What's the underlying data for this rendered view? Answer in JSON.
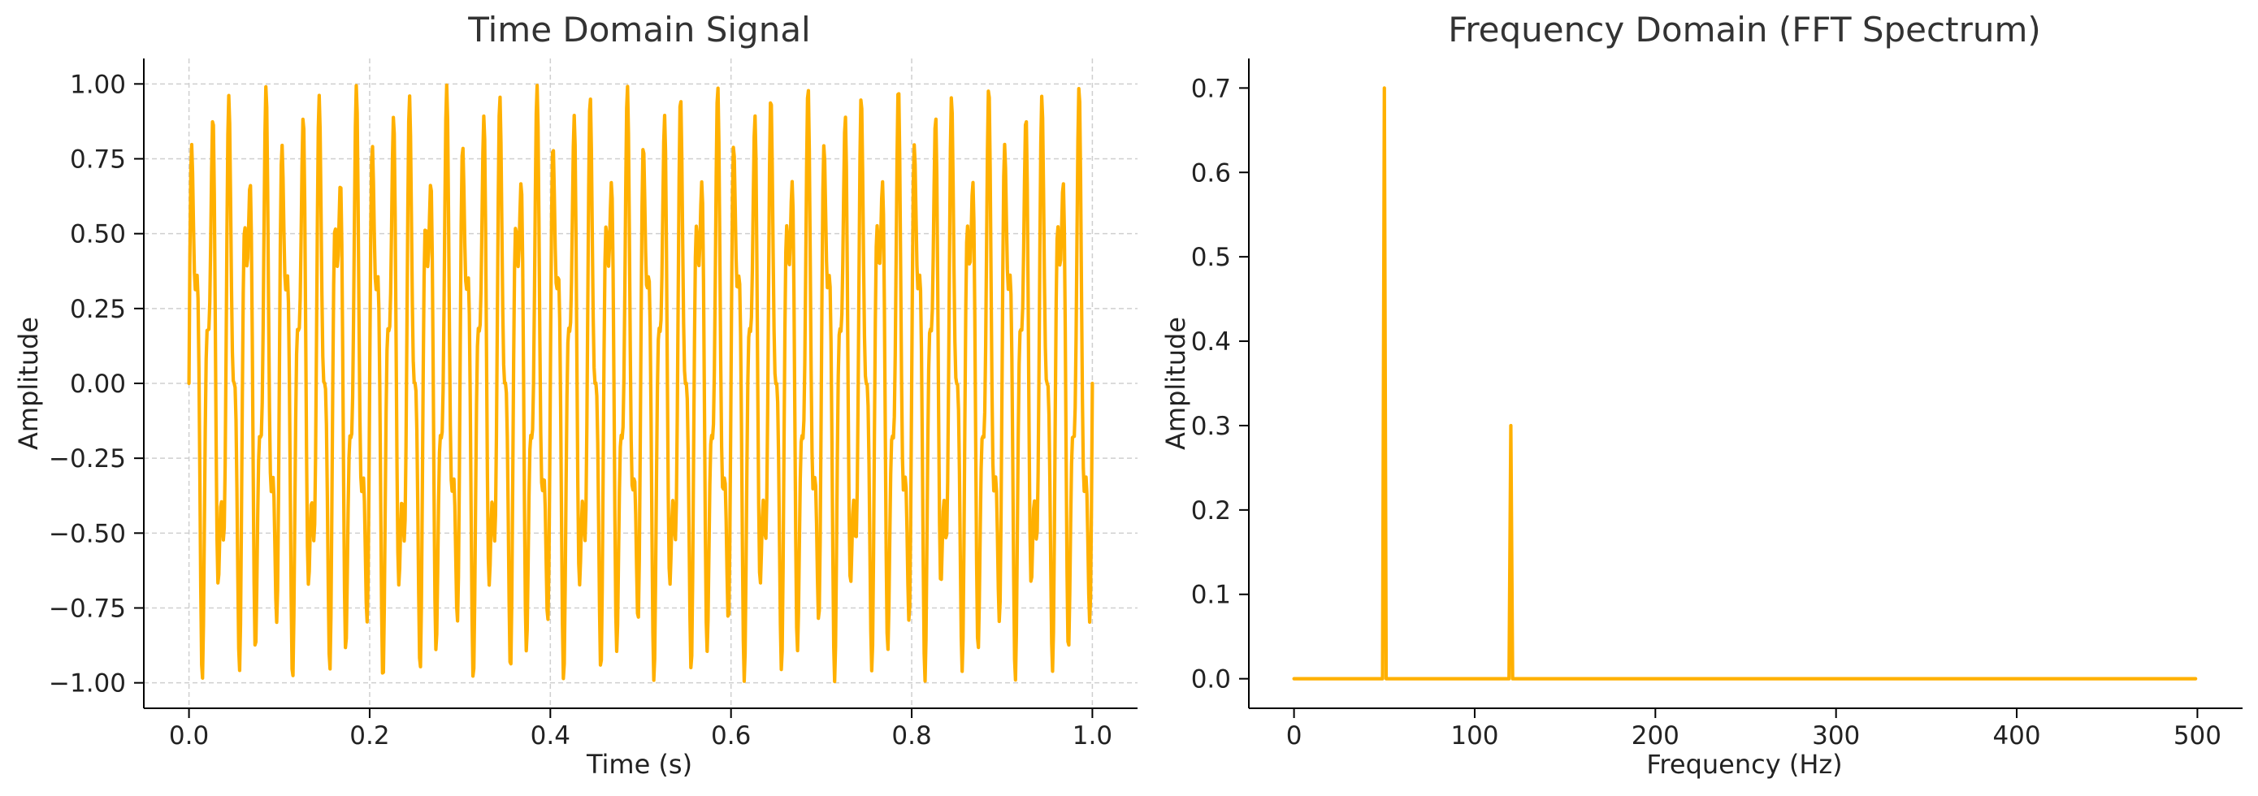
{
  "colors": {
    "series": "#FFB000",
    "grid": "#cfcfcf",
    "axis": "#000000",
    "text": "#222222",
    "title": "#333333"
  },
  "chart_data": [
    {
      "type": "line",
      "title": "Time Domain Signal",
      "xlabel": "Time (s)",
      "ylabel": "Amplitude",
      "xlim": [
        -0.05,
        1.05
      ],
      "ylim": [
        -1.085,
        1.085
      ],
      "xticks": [
        0.0,
        0.2,
        0.4,
        0.6,
        0.8,
        1.0
      ],
      "xtick_labels": [
        "0.0",
        "0.2",
        "0.4",
        "0.6",
        "0.8",
        "1.0"
      ],
      "yticks": [
        1.0,
        0.75,
        0.5,
        0.25,
        0.0,
        -0.25,
        -0.5,
        -0.75,
        -1.0
      ],
      "ytick_labels": [
        "1.00",
        "0.75",
        "0.50",
        "0.25",
        "0.00",
        "−0.25",
        "−0.50",
        "−0.75",
        "−1.00"
      ],
      "grid": true,
      "series": [
        {
          "components": [
            {
              "frequency": 50,
              "amplitude": 0.7
            },
            {
              "frequency": 120,
              "amplitude": 0.3
            }
          ],
          "x_range": [
            0.0,
            1.0
          ],
          "samples": 1000
        }
      ]
    },
    {
      "type": "line",
      "title": "Frequency Domain (FFT Spectrum)",
      "xlabel": "Frequency (Hz)",
      "ylabel": "Amplitude",
      "xlim": [
        -25,
        525
      ],
      "ylim": [
        -0.035,
        0.735
      ],
      "xticks": [
        0,
        100,
        200,
        300,
        400,
        500
      ],
      "xtick_labels": [
        "0",
        "100",
        "200",
        "300",
        "400",
        "500"
      ],
      "yticks": [
        0.7,
        0.6,
        0.5,
        0.4,
        0.3,
        0.2,
        0.1,
        0.0
      ],
      "ytick_labels": [
        "0.7",
        "0.6",
        "0.5",
        "0.4",
        "0.3",
        "0.2",
        "0.1",
        "0.0"
      ],
      "grid": false,
      "series": [
        {
          "x_range": [
            0,
            499
          ],
          "peaks": [
            {
              "frequency": 50,
              "amplitude": 0.7
            },
            {
              "frequency": 120,
              "amplitude": 0.3
            }
          ]
        }
      ]
    }
  ]
}
